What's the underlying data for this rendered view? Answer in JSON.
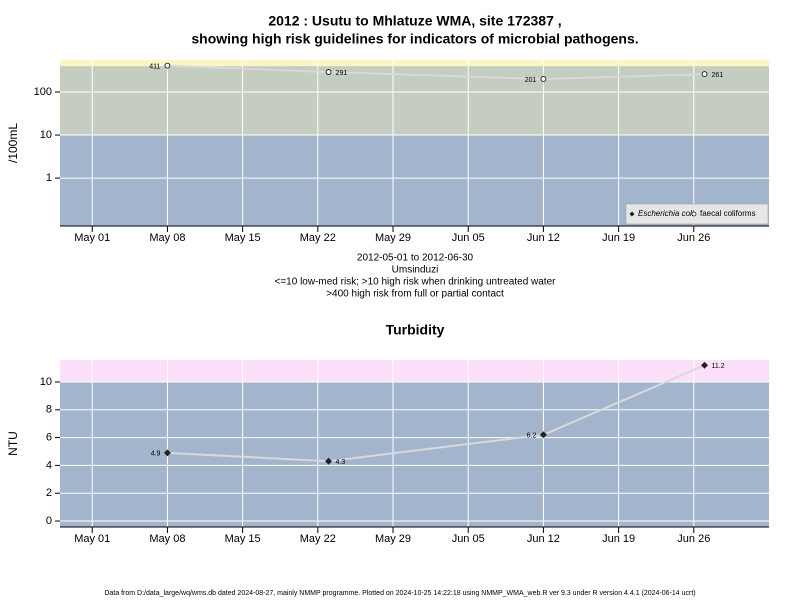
{
  "chart_data": [
    {
      "type": "line",
      "title_lines": [
        "2012 : Usutu to Mhlatuze WMA, site 172387 ,",
        "showing high risk guidelines for indicators of microbial pathogens."
      ],
      "ylabel": "/100mL",
      "ylog": true,
      "x": [
        "2012-05-08",
        "2012-05-23",
        "2012-06-12",
        "2012-06-27"
      ],
      "series": [
        {
          "name": "faecal coliforms",
          "color": "#d9d9d9",
          "marker": "circle",
          "values": [
            411,
            291,
            201,
            261
          ]
        }
      ],
      "legend": [
        {
          "name": "Escherichia coli",
          "marker": "diamond"
        },
        {
          "name": "faecal coliforms",
          "marker": "circle"
        }
      ],
      "legend_position": "bottom-right",
      "bands": [
        {
          "to": 10,
          "color": "#a3b5cd"
        },
        {
          "from": 10,
          "to": 400,
          "color": "#c4cdbf"
        },
        {
          "from": 400,
          "color": "#fcf6c4"
        }
      ],
      "xlim": [
        "2012-04-28",
        "2012-07-03"
      ],
      "xticks": [
        {
          "value": "2012-05-01",
          "label": "May 01"
        },
        {
          "value": "2012-05-08",
          "label": "May 08"
        },
        {
          "value": "2012-05-15",
          "label": "May 15"
        },
        {
          "value": "2012-05-22",
          "label": "May 22"
        },
        {
          "value": "2012-05-29",
          "label": "May 29"
        },
        {
          "value": "2012-06-05",
          "label": "Jun 05"
        },
        {
          "value": "2012-06-12",
          "label": "Jun 12"
        },
        {
          "value": "2012-06-19",
          "label": "Jun 19"
        },
        {
          "value": "2012-06-26",
          "label": "Jun 26"
        }
      ],
      "ylim": [
        0.077,
        555
      ],
      "yticks": [
        1,
        10,
        100
      ],
      "grid": true,
      "notes": [
        "2012-05-01 to 2012-06-30",
        "Umsinduzi",
        "<=10 low-med risk; >10 high risk when drinking untreated water",
        ">400 high risk from full or partial contact"
      ]
    },
    {
      "type": "line",
      "title_lines": [
        "Turbidity"
      ],
      "ylabel": "NTU",
      "ylog": false,
      "x": [
        "2012-05-08",
        "2012-05-23",
        "2012-06-12",
        "2012-06-27"
      ],
      "series": [
        {
          "name": "Turbidity",
          "color": "#d9d9d9",
          "marker": "diamond",
          "values": [
            4.9,
            4.3,
            6.2,
            11.2
          ]
        }
      ],
      "bands": [
        {
          "to": 10,
          "color": "#a3b5cd"
        },
        {
          "from": 10,
          "color": "#fce0fa"
        }
      ],
      "xlim": [
        "2012-04-28",
        "2012-07-03"
      ],
      "xticks": [
        {
          "value": "2012-05-01",
          "label": "May 01"
        },
        {
          "value": "2012-05-08",
          "label": "May 08"
        },
        {
          "value": "2012-05-15",
          "label": "May 15"
        },
        {
          "value": "2012-05-22",
          "label": "May 22"
        },
        {
          "value": "2012-05-29",
          "label": "May 29"
        },
        {
          "value": "2012-06-05",
          "label": "Jun 05"
        },
        {
          "value": "2012-06-12",
          "label": "Jun 12"
        },
        {
          "value": "2012-06-19",
          "label": "Jun 19"
        },
        {
          "value": "2012-06-26",
          "label": "Jun 26"
        }
      ],
      "ylim": [
        -0.43,
        11.58
      ],
      "yticks": [
        0,
        2,
        4,
        6,
        8,
        10
      ],
      "grid": true
    }
  ],
  "footer": "Data from D:/data_large/wq/wms.db dated 2024-08-27, mainly NMMP programme. Plotted on 2024-10-25 14:22:18 using NMMP_WMA_web.R ver 9.3 under R version 4.4.1 (2024-06-14 ucrt)"
}
